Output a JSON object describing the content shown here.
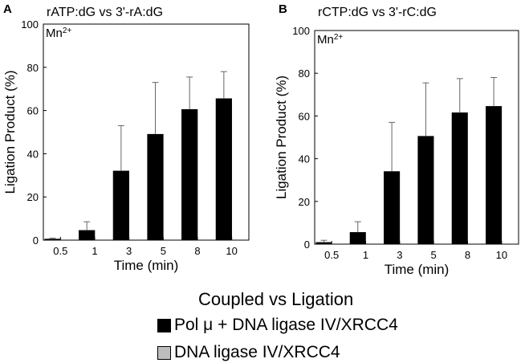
{
  "chart_data": [
    {
      "type": "bar",
      "panel": "A",
      "title": "rATP:dG vs 3'-rA:dG",
      "condition": "Mn2+",
      "xlabel": "Time (min)",
      "ylabel": "Ligation Product (%)",
      "categories": [
        "0.5",
        "1",
        "3",
        "5",
        "8",
        "10"
      ],
      "ylim": [
        0,
        100
      ],
      "yticks": [
        0,
        20,
        40,
        60,
        80,
        100
      ],
      "series": [
        {
          "name": "Pol μ + DNA ligase IV/XRCC4",
          "color": "#000000",
          "values": [
            0.5,
            4.5,
            32,
            49,
            60.5,
            65.5
          ],
          "error": [
            0.4,
            4.0,
            21,
            24,
            15,
            12.5
          ]
        },
        {
          "name": "DNA ligase IV/XRCC4",
          "color": "#bdbdbd",
          "values": [
            0,
            0,
            0,
            0,
            0,
            0
          ],
          "error": [
            0,
            0,
            0,
            0,
            0,
            0
          ]
        }
      ]
    },
    {
      "type": "bar",
      "panel": "B",
      "title": "rCTP:dG vs 3'-rC:dG",
      "condition": "Mn2+",
      "xlabel": "Time (min)",
      "ylabel": "Ligation Product (%)",
      "categories": [
        "0.5",
        "1",
        "3",
        "5",
        "8",
        "10"
      ],
      "ylim": [
        0,
        100
      ],
      "yticks": [
        0,
        20,
        40,
        60,
        80,
        100
      ],
      "series": [
        {
          "name": "Pol μ + DNA ligase IV/XRCC4",
          "color": "#000000",
          "values": [
            0.8,
            5.5,
            34,
            50.5,
            61.5,
            64.5
          ],
          "error": [
            1.0,
            5.0,
            23,
            25,
            16,
            13.5
          ]
        },
        {
          "name": "DNA ligase IV/XRCC4",
          "color": "#bdbdbd",
          "values": [
            0,
            0,
            0,
            0,
            0,
            0
          ],
          "error": [
            0,
            0,
            0,
            0,
            0,
            0
          ]
        }
      ]
    }
  ],
  "legend": {
    "title": "Coupled vs Ligation",
    "items": [
      {
        "label": "Pol μ + DNA ligase IV/XRCC4",
        "color": "#000000"
      },
      {
        "label": "DNA ligase IV/XRCC4",
        "color": "#bdbdbd"
      }
    ]
  }
}
